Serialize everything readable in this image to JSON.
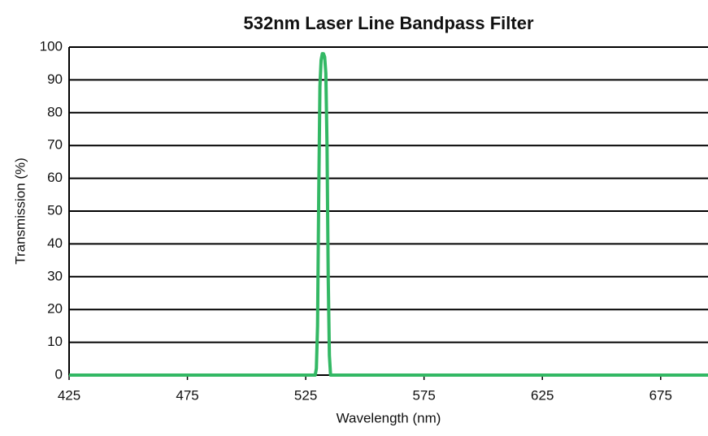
{
  "chart_data": {
    "type": "line",
    "title": "532nm Laser Line Bandpass Filter",
    "x_label": "Wavelength (nm)",
    "y_label": "Transmission (%)",
    "x": [
      425,
      529,
      529.5,
      530,
      530.5,
      531,
      531.5,
      532,
      532.5,
      533,
      533.5,
      534,
      534.5,
      535,
      535.5,
      536,
      695
    ],
    "series": [
      {
        "name": "Transmission",
        "color": "#33b864",
        "values": [
          0,
          0,
          2,
          15,
          55,
          88,
          96,
          98,
          98,
          97,
          92,
          70,
          30,
          6,
          0,
          0,
          0
        ]
      }
    ],
    "xlim": [
      425,
      695
    ],
    "xticks": [
      425,
      475,
      525,
      575,
      625,
      675
    ],
    "ylim": [
      0,
      100
    ],
    "yticks": [
      0,
      10,
      20,
      30,
      40,
      50,
      60,
      70,
      80,
      90,
      100
    ],
    "grid": true
  }
}
